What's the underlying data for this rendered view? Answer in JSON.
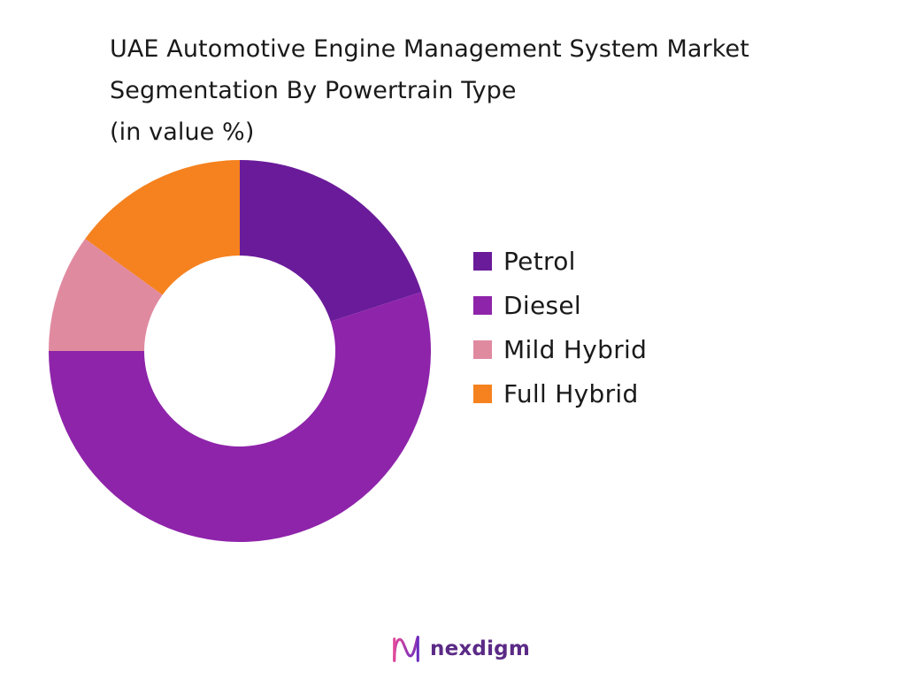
{
  "title_lines": [
    "UAE Automotive Engine Management System Market",
    "Segmentation By Powertrain Type",
    "(in value %)"
  ],
  "chart_data": {
    "type": "pie",
    "variant": "donut",
    "title": "UAE Automotive Engine Management System Market Segmentation By Powertrain Type (in value %)",
    "categories": [
      "Petrol",
      "Diesel",
      "Mild Hybrid",
      "Full Hybrid"
    ],
    "values": [
      20,
      55,
      10,
      15
    ],
    "colors": [
      "#6a1b9a",
      "#8e24aa",
      "#e08aa0",
      "#f5821f"
    ],
    "legend_position": "right",
    "start_angle_deg": 0,
    "direction": "clockwise"
  },
  "logo": {
    "text": "nexdigm",
    "icon": "nexdigm-logo-icon"
  }
}
